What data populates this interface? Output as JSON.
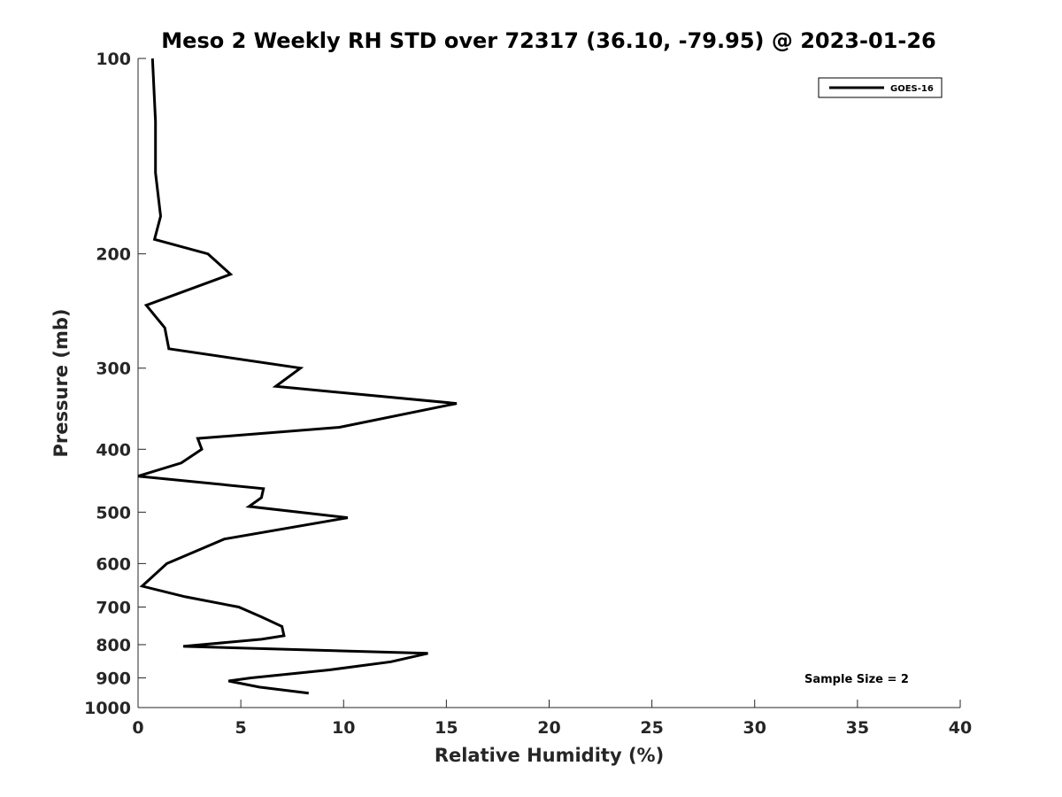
{
  "chart_data": {
    "type": "line",
    "title": "Meso 2 Weekly RH STD over 72317 (36.10, -79.95) @ 2023-01-26",
    "xlabel": "Relative Humidity (%)",
    "ylabel": "Pressure (mb)",
    "xlim": [
      0,
      40
    ],
    "ylim": [
      100,
      1000
    ],
    "yscale": "log",
    "yreversed": true,
    "xticks": [
      0,
      5,
      10,
      15,
      20,
      25,
      30,
      35,
      40
    ],
    "xtick_labels": [
      "0",
      "5",
      "10",
      "15",
      "20",
      "25",
      "30",
      "35",
      "40"
    ],
    "yticks": [
      100,
      200,
      300,
      400,
      500,
      600,
      700,
      800,
      900,
      1000
    ],
    "ytick_labels": [
      "100",
      "200",
      "300",
      "400",
      "500",
      "600",
      "700",
      "800",
      "900",
      "1000"
    ],
    "grid": false,
    "legend_position": "top-right",
    "series": [
      {
        "name": "GOES-16",
        "color": "#000000",
        "x": [
          0.7,
          0.85,
          0.85,
          1.1,
          0.8,
          3.4,
          4.5,
          0.4,
          1.3,
          1.5,
          7.9,
          6.7,
          15.5,
          9.8,
          2.9,
          3.1,
          2.1,
          0.0,
          6.1,
          6.0,
          5.4,
          10.2,
          4.2,
          1.4,
          0.2,
          2.3,
          4.9,
          6.0,
          7.0,
          7.1,
          6.0,
          2.2,
          14.1,
          12.3,
          9.3,
          5.5,
          4.4,
          5.9,
          8.3
        ],
        "y": [
          100,
          125,
          150,
          175,
          190,
          200,
          215,
          240,
          260,
          280,
          300,
          320,
          340,
          370,
          385,
          400,
          420,
          440,
          460,
          475,
          490,
          510,
          550,
          600,
          650,
          675,
          700,
          725,
          750,
          775,
          785,
          805,
          825,
          850,
          875,
          900,
          910,
          930,
          950
        ]
      }
    ],
    "annotation": "Sample Size = 2"
  }
}
